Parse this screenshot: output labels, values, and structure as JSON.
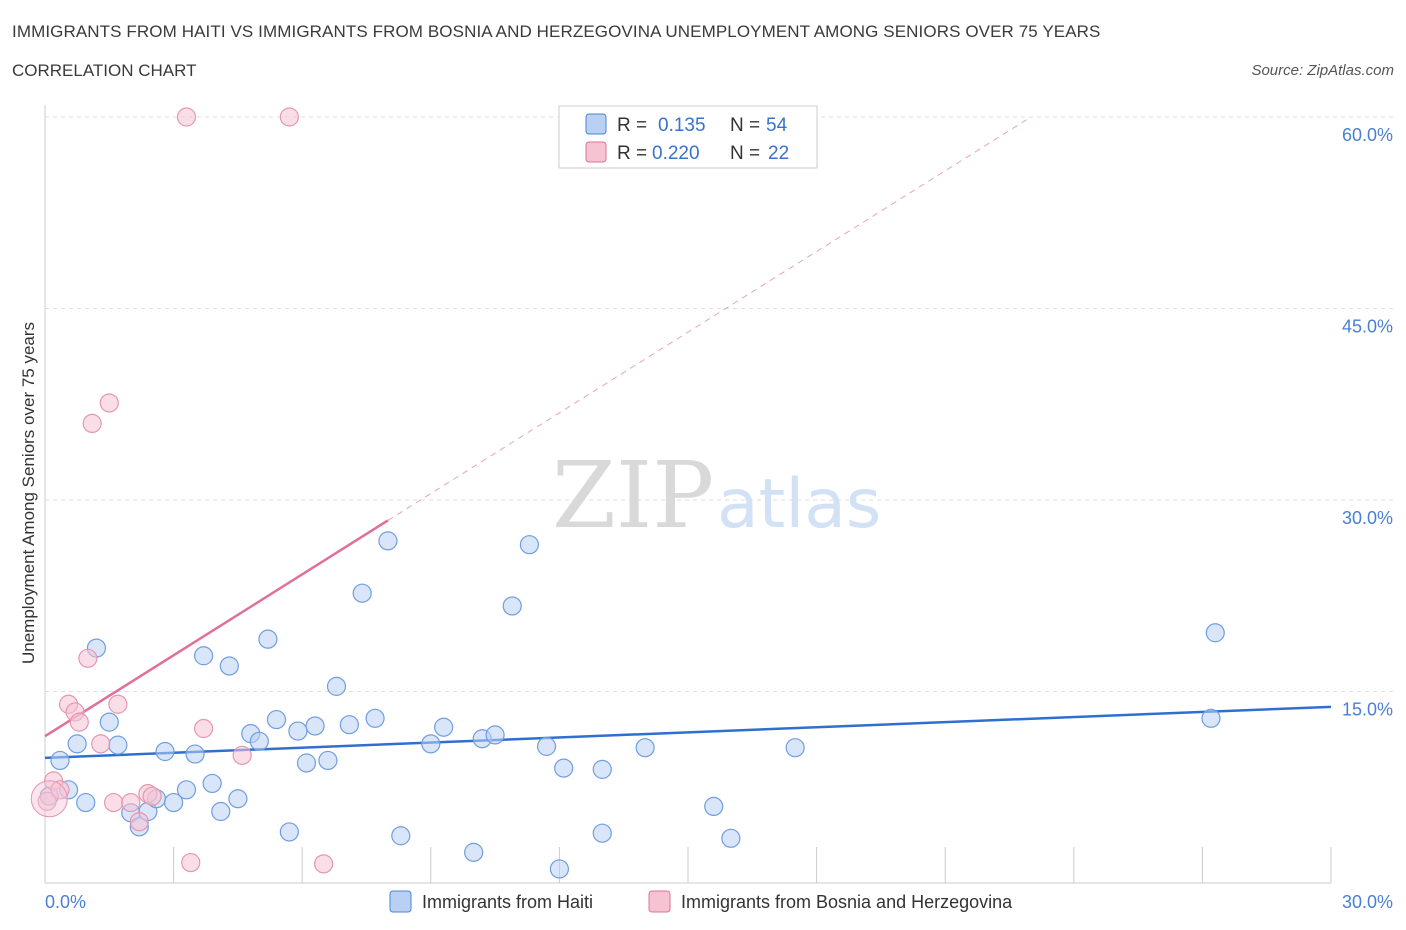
{
  "header": {
    "title": "IMMIGRANTS FROM HAITI VS IMMIGRANTS FROM BOSNIA AND HERZEGOVINA UNEMPLOYMENT AMONG SENIORS OVER 75 YEARS",
    "subtitle": "CORRELATION CHART",
    "source": "Source: ZipAtlas.com"
  },
  "watermark": {
    "zip": "ZIP",
    "atlas": "atlas"
  },
  "colors": {
    "blue": "#4a86d8",
    "blue_fill": "#b9d0f2",
    "pink": "#e0709a",
    "pink_fill": "#f6c3d3",
    "axis_label": "#4a7fd4",
    "grid": "#dddddd"
  },
  "legend": {
    "series1": {
      "r_label": "R =",
      "r_value": "0.135",
      "n_label": "N =",
      "n_value": "54"
    },
    "series2": {
      "r_label": "R =",
      "r_value": "0.220",
      "n_label": "N =",
      "n_value": "22"
    }
  },
  "chart_data": {
    "type": "scatter",
    "title": "IMMIGRANTS FROM HAITI VS IMMIGRANTS FROM BOSNIA AND HERZEGOVINA UNEMPLOYMENT AMONG SENIORS OVER 75 YEARS",
    "ylabel": "Unemployment Among Seniors over 75 years",
    "xlim": [
      0,
      30
    ],
    "ylim": [
      0,
      60
    ],
    "x_tick_labels": [
      "0.0%",
      "30.0%"
    ],
    "y_ticks": [
      15,
      30,
      45,
      60
    ],
    "y_tick_labels": [
      "15.0%",
      "30.0%",
      "45.0%",
      "60.0%"
    ],
    "grid": true,
    "legend_position": "top-center",
    "series": [
      {
        "name": "Immigrants from Haiti",
        "color": "#4a86d8",
        "R": 0.135,
        "N": 54,
        "trend": {
          "x0": 0,
          "y0": 9.8,
          "x1": 30,
          "y1": 13.8
        },
        "points": [
          [
            0.1,
            6.8
          ],
          [
            0.35,
            9.6
          ],
          [
            0.55,
            7.3
          ],
          [
            0.75,
            10.9
          ],
          [
            0.95,
            6.3
          ],
          [
            1.2,
            18.4
          ],
          [
            1.5,
            12.6
          ],
          [
            1.7,
            10.8
          ],
          [
            2.0,
            5.5
          ],
          [
            2.2,
            4.4
          ],
          [
            2.4,
            5.6
          ],
          [
            2.6,
            6.6
          ],
          [
            2.8,
            10.3
          ],
          [
            3.0,
            6.3
          ],
          [
            3.3,
            7.3
          ],
          [
            3.5,
            10.1
          ],
          [
            3.7,
            17.8
          ],
          [
            3.9,
            7.8
          ],
          [
            4.1,
            5.6
          ],
          [
            4.3,
            17.0
          ],
          [
            4.5,
            6.6
          ],
          [
            4.8,
            11.7
          ],
          [
            5.0,
            11.1
          ],
          [
            5.2,
            19.1
          ],
          [
            5.4,
            12.8
          ],
          [
            5.7,
            4.0
          ],
          [
            5.9,
            11.9
          ],
          [
            6.1,
            9.4
          ],
          [
            6.3,
            12.3
          ],
          [
            6.6,
            9.6
          ],
          [
            6.8,
            15.4
          ],
          [
            7.1,
            12.4
          ],
          [
            7.4,
            22.7
          ],
          [
            7.7,
            12.9
          ],
          [
            8.0,
            26.8
          ],
          [
            8.3,
            3.7
          ],
          [
            9.0,
            10.9
          ],
          [
            9.3,
            12.2
          ],
          [
            10.0,
            2.4
          ],
          [
            10.2,
            11.3
          ],
          [
            10.5,
            11.6
          ],
          [
            10.9,
            21.7
          ],
          [
            11.3,
            26.5
          ],
          [
            11.7,
            10.7
          ],
          [
            12.0,
            1.1
          ],
          [
            12.1,
            9.0
          ],
          [
            13.0,
            3.9
          ],
          [
            13.0,
            8.9
          ],
          [
            14.0,
            10.6
          ],
          [
            15.6,
            6.0
          ],
          [
            16.0,
            3.5
          ],
          [
            17.5,
            10.6
          ],
          [
            27.2,
            12.9
          ],
          [
            27.3,
            19.6
          ]
        ]
      },
      {
        "name": "Immigrants from Bosnia and Herzegovina",
        "color": "#e0709a",
        "R": 0.22,
        "N": 22,
        "trend": {
          "x0": 0,
          "y0": 11.5,
          "x1": 8.0,
          "y1": 28.4
        },
        "trend_extension": {
          "x0": 8.0,
          "y0": 28.4,
          "x1": 23.0,
          "y1": 60.0
        },
        "points": [
          [
            0.05,
            6.4
          ],
          [
            0.2,
            8.0
          ],
          [
            0.35,
            7.3
          ],
          [
            0.55,
            14.0
          ],
          [
            0.7,
            13.4
          ],
          [
            0.8,
            12.6
          ],
          [
            1.0,
            17.6
          ],
          [
            1.1,
            36.0
          ],
          [
            1.3,
            10.9
          ],
          [
            1.5,
            37.6
          ],
          [
            1.6,
            6.3
          ],
          [
            1.7,
            14.0
          ],
          [
            2.0,
            6.3
          ],
          [
            2.2,
            4.8
          ],
          [
            2.4,
            7.0
          ],
          [
            2.5,
            6.8
          ],
          [
            3.3,
            60.0
          ],
          [
            3.4,
            1.6
          ],
          [
            3.7,
            12.1
          ],
          [
            4.6,
            10.0
          ],
          [
            5.7,
            60.0
          ],
          [
            6.5,
            1.5
          ]
        ]
      }
    ]
  }
}
